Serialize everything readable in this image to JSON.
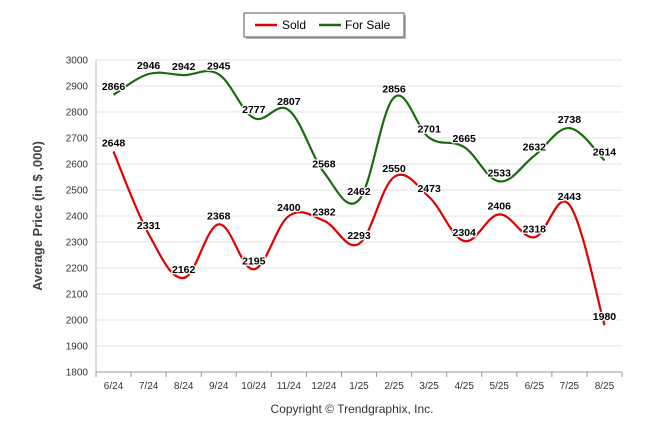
{
  "chart_data": {
    "type": "line",
    "ylabel": "Average Price (in $ ,000)",
    "credit": "Copyright © Trendgraphix, Inc.",
    "categories": [
      "6/24",
      "7/24",
      "8/24",
      "9/24",
      "10/24",
      "11/24",
      "12/24",
      "1/25",
      "2/25",
      "3/25",
      "4/25",
      "5/25",
      "6/25",
      "7/25",
      "8/25"
    ],
    "ylim": [
      1800,
      3000
    ],
    "yticks": [
      1800,
      1900,
      2000,
      2100,
      2200,
      2300,
      2400,
      2500,
      2600,
      2700,
      2800,
      2900,
      3000
    ],
    "grid": true,
    "legend_position": "top-center",
    "series": [
      {
        "name": "Sold",
        "color": "#e00000",
        "values": [
          2648,
          2331,
          2162,
          2368,
          2195,
          2400,
          2382,
          2293,
          2550,
          2473,
          2304,
          2406,
          2318,
          2443,
          1980
        ]
      },
      {
        "name": "For Sale",
        "color": "#1a6b0f",
        "values": [
          2866,
          2946,
          2942,
          2945,
          2777,
          2807,
          2568,
          2462,
          2856,
          2701,
          2665,
          2533,
          2632,
          2738,
          2614
        ]
      }
    ]
  }
}
